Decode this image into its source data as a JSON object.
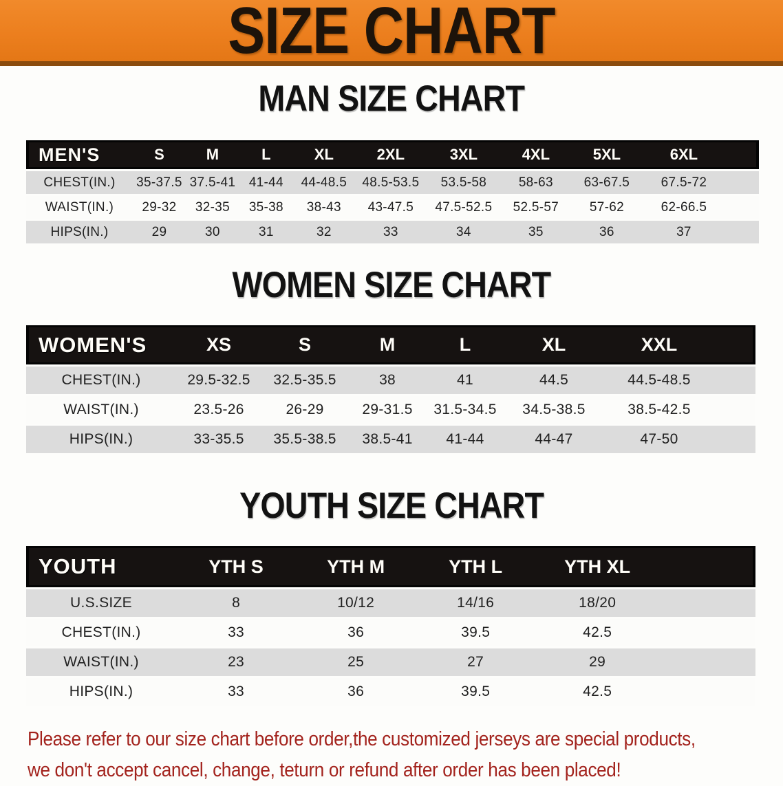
{
  "banner": {
    "title": "SIZE CHART",
    "bg_color": "#ec7f1e",
    "text_color": "#1d130a"
  },
  "colors": {
    "accent_orange": "#ec7f1e",
    "banner_bottom_edge": "#8a4b0d",
    "table_header_bg": "#161211",
    "row_gray": "#dcdcdc",
    "row_white": "#fcfcfa",
    "warning_red": "#a3231d"
  },
  "sections": [
    {
      "heading": "MAN SIZE CHART",
      "table": {
        "header_label": "MEN'S",
        "columns": [
          "S",
          "M",
          "L",
          "XL",
          "2XL",
          "3XL",
          "4XL",
          "5XL",
          "6XL"
        ],
        "rows": [
          {
            "label": "CHEST(IN.)",
            "values": [
              "35-37.5",
              "37.5-41",
              "41-44",
              "44-48.5",
              "48.5-53.5",
              "53.5-58",
              "58-63",
              "63-67.5",
              "67.5-72"
            ]
          },
          {
            "label": "WAIST(IN.)",
            "values": [
              "29-32",
              "32-35",
              "35-38",
              "38-43",
              "43-47.5",
              "47.5-52.5",
              "52.5-57",
              "57-62",
              "62-66.5"
            ]
          },
          {
            "label": "HIPS(IN.)",
            "values": [
              "29",
              "30",
              "31",
              "32",
              "33",
              "34",
              "35",
              "36",
              "37"
            ]
          }
        ]
      }
    },
    {
      "heading": "WOMEN SIZE CHART",
      "table": {
        "header_label": "WOMEN'S",
        "columns": [
          "XS",
          "S",
          "M",
          "L",
          "XL",
          "XXL"
        ],
        "rows": [
          {
            "label": "CHEST(IN.)",
            "values": [
              "29.5-32.5",
              "32.5-35.5",
              "38",
              "41",
              "44.5",
              "44.5-48.5"
            ]
          },
          {
            "label": "WAIST(IN.)",
            "values": [
              "23.5-26",
              "26-29",
              "29-31.5",
              "31.5-34.5",
              "34.5-38.5",
              "38.5-42.5"
            ]
          },
          {
            "label": "HIPS(IN.)",
            "values": [
              "33-35.5",
              "35.5-38.5",
              "38.5-41",
              "41-44",
              "44-47",
              "47-50"
            ]
          }
        ]
      }
    },
    {
      "heading": "YOUTH SIZE CHART",
      "table": {
        "header_label": "YOUTH",
        "columns": [
          "YTH S",
          "YTH M",
          "YTH L",
          "YTH XL"
        ],
        "rows": [
          {
            "label": "U.S.SIZE",
            "values": [
              "8",
              "10/12",
              "14/16",
              "18/20"
            ]
          },
          {
            "label": "CHEST(IN.)",
            "values": [
              "33",
              "36",
              "39.5",
              "42.5"
            ]
          },
          {
            "label": "WAIST(IN.)",
            "values": [
              "23",
              "25",
              "27",
              "29"
            ]
          },
          {
            "label": "HIPS(IN.)",
            "values": [
              "33",
              "36",
              "39.5",
              "42.5"
            ]
          }
        ]
      }
    }
  ],
  "footer": {
    "line1": "Please refer to our size chart before order,the customized jerseys are special products,",
    "line2": "we don't accept cancel, change, teturn or refund after order has been placed!"
  }
}
